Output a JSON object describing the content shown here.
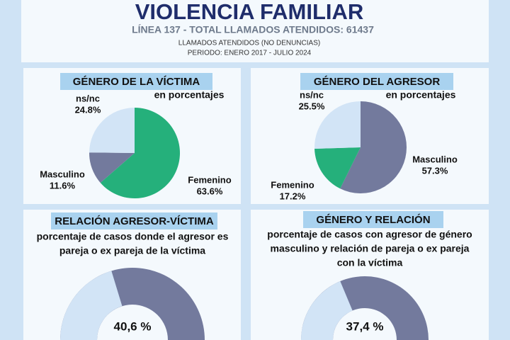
{
  "header": {
    "title": "VIOLENCIA FAMILIAR",
    "subtitle": "LÍNEA 137 - TOTAL LLAMADOS ATENDIDOS: 61437",
    "note": "LLAMADOS ATENDIDOS (NO DENUNCIAS)",
    "period": "PERIODO: ENERO 2017 - JULIO 2024"
  },
  "chart_data": [
    {
      "type": "pie",
      "title": "GÉNERO DE LA VÍCTIMA",
      "subtitle": "en porcentajes",
      "categories": [
        "Femenino",
        "Masculino",
        "ns/nc"
      ],
      "values": [
        63.6,
        11.6,
        24.8
      ],
      "value_labels": [
        "63.6%",
        "11.6%",
        "24.8%"
      ],
      "colors": [
        "#25b07b",
        "#737a9d",
        "#d2e4f6"
      ]
    },
    {
      "type": "pie",
      "title": "GÉNERO DEL AGRESOR",
      "subtitle": "en porcentajes",
      "categories": [
        "Masculino",
        "Femenino",
        "ns/nc"
      ],
      "values": [
        57.3,
        17.2,
        25.5
      ],
      "value_labels": [
        "57.3%",
        "17.2%",
        "25.5%"
      ],
      "colors": [
        "#737a9d",
        "#25b07b",
        "#d2e4f6"
      ]
    },
    {
      "type": "gauge",
      "title": "RELACIÓN AGRESOR-VÍCTIMA",
      "description": [
        "porcentaje de casos donde el agresor es",
        "pareja o ex pareja de la víctima"
      ],
      "values": [
        40.6
      ],
      "value_labels": [
        "40,6 %"
      ],
      "ylim": [
        0,
        100
      ],
      "color": "#d2e4f6",
      "track_color": "#737a9d"
    },
    {
      "type": "gauge",
      "title": "GÉNERO Y RELACIÓN",
      "description": [
        "porcentaje de casos con agresor de género",
        "masculino y relación de pareja o ex pareja",
        "con la víctima"
      ],
      "values": [
        37.4
      ],
      "value_labels": [
        "37,4 %"
      ],
      "ylim": [
        0,
        100
      ],
      "color": "#d2e4f6",
      "track_color": "#737a9d"
    }
  ]
}
